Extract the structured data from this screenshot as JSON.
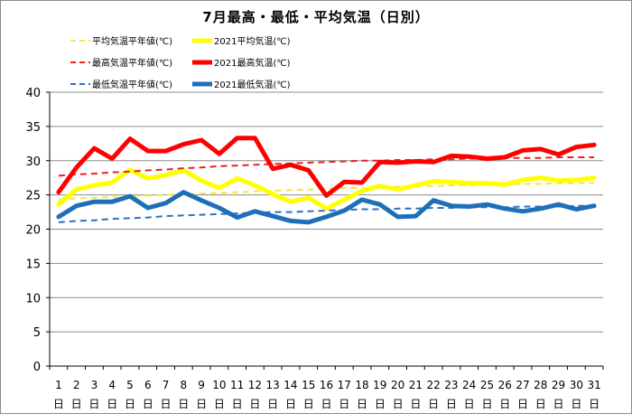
{
  "chart_data": {
    "type": "line",
    "title": "7月最高・最低・平均気温（日別）",
    "xlabel": "",
    "ylabel": "",
    "ylim": [
      0,
      40
    ],
    "yticks": [
      0,
      5,
      10,
      15,
      20,
      25,
      30,
      35,
      40
    ],
    "categories": [
      "1日",
      "2日",
      "3日",
      "4日",
      "5日",
      "6日",
      "7日",
      "8日",
      "9日",
      "10日",
      "11日",
      "12日",
      "13日",
      "14日",
      "15日",
      "16日",
      "17日",
      "18日",
      "19日",
      "20日",
      "21日",
      "22日",
      "23日",
      "24日",
      "25日",
      "26日",
      "27日",
      "28日",
      "29日",
      "30日",
      "31日"
    ],
    "grid": "horizontal",
    "legend_position": "top",
    "series": [
      {
        "name": "平均気温平年値(℃)",
        "color": "#f5e642",
        "style": "dashed",
        "values": [
          24.3,
          24.5,
          24.6,
          24.7,
          24.8,
          24.9,
          25.0,
          25.1,
          25.2,
          25.3,
          25.4,
          25.5,
          25.6,
          25.7,
          25.8,
          25.9,
          26.0,
          26.0,
          26.1,
          26.2,
          26.3,
          26.3,
          26.4,
          26.4,
          26.5,
          26.5,
          26.6,
          26.6,
          26.7,
          26.7,
          26.8
        ]
      },
      {
        "name": "2021平均気温(℃)",
        "color": "#ffff00",
        "style": "solid",
        "values": [
          23.6,
          25.8,
          26.4,
          26.8,
          28.7,
          27.4,
          27.9,
          28.6,
          27.1,
          26.0,
          27.4,
          26.4,
          25.1,
          24.0,
          24.6,
          23.0,
          24.3,
          25.6,
          26.3,
          25.8,
          26.4,
          27.0,
          26.9,
          26.7,
          26.7,
          26.5,
          27.2,
          27.5,
          27.1,
          27.2,
          27.5
        ]
      },
      {
        "name": "最高気温平年値(℃)",
        "color": "#e8231e",
        "style": "dashed",
        "values": [
          27.8,
          28.0,
          28.1,
          28.3,
          28.4,
          28.6,
          28.7,
          28.9,
          29.0,
          29.2,
          29.3,
          29.4,
          29.5,
          29.6,
          29.7,
          29.8,
          29.9,
          30.0,
          30.0,
          30.1,
          30.1,
          30.2,
          30.2,
          30.3,
          30.3,
          30.4,
          30.4,
          30.4,
          30.5,
          30.5,
          30.5
        ]
      },
      {
        "name": "2021最高気温(℃)",
        "color": "#ff0000",
        "style": "solid",
        "values": [
          25.4,
          29.0,
          31.8,
          30.3,
          33.2,
          31.4,
          31.4,
          32.4,
          33.0,
          31.0,
          33.3,
          33.3,
          28.8,
          29.4,
          28.6,
          24.9,
          26.9,
          26.8,
          29.8,
          29.7,
          29.9,
          29.8,
          30.7,
          30.6,
          30.3,
          30.5,
          31.5,
          31.7,
          30.9,
          32.0,
          32.3
        ]
      },
      {
        "name": "最低気温平年値(℃)",
        "color": "#2e6fc7",
        "style": "dashed",
        "values": [
          21.0,
          21.2,
          21.3,
          21.5,
          21.6,
          21.7,
          21.9,
          22.0,
          22.1,
          22.2,
          22.3,
          22.4,
          22.5,
          22.5,
          22.6,
          22.7,
          22.8,
          22.9,
          22.9,
          23.0,
          23.0,
          23.1,
          23.1,
          23.2,
          23.2,
          23.2,
          23.3,
          23.3,
          23.3,
          23.4,
          23.4
        ]
      },
      {
        "name": "2021最低気温(℃)",
        "color": "#1f6fb8",
        "style": "solid",
        "values": [
          21.8,
          23.4,
          24.0,
          24.0,
          24.8,
          23.1,
          23.8,
          25.4,
          24.2,
          23.1,
          21.7,
          22.6,
          21.9,
          21.2,
          21.0,
          21.8,
          22.7,
          24.3,
          23.6,
          21.8,
          21.9,
          24.2,
          23.4,
          23.3,
          23.6,
          23.0,
          22.6,
          23.0,
          23.6,
          22.9,
          23.4
        ]
      }
    ]
  }
}
